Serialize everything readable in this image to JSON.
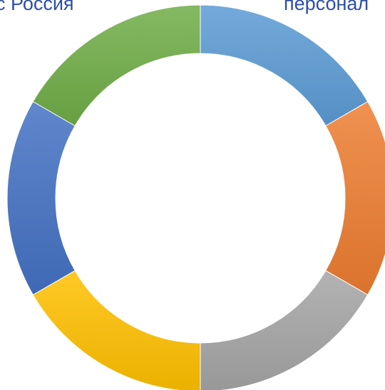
{
  "labels": {
    "top_left": "с Россия",
    "top_right": "персонал"
  },
  "chart_data": {
    "type": "pie",
    "subtype": "donut",
    "slices": [
      {
        "value": 1,
        "color": "#5B9BD5"
      },
      {
        "value": 1,
        "color": "#ED7D31"
      },
      {
        "value": 1,
        "color": "#A5A5A5"
      },
      {
        "value": 1,
        "color": "#FFC000"
      },
      {
        "value": 1,
        "color": "#4472C4"
      },
      {
        "value": 1,
        "color": "#70AD47"
      }
    ],
    "start": "top",
    "direction": "clockwise",
    "legend": "none"
  }
}
